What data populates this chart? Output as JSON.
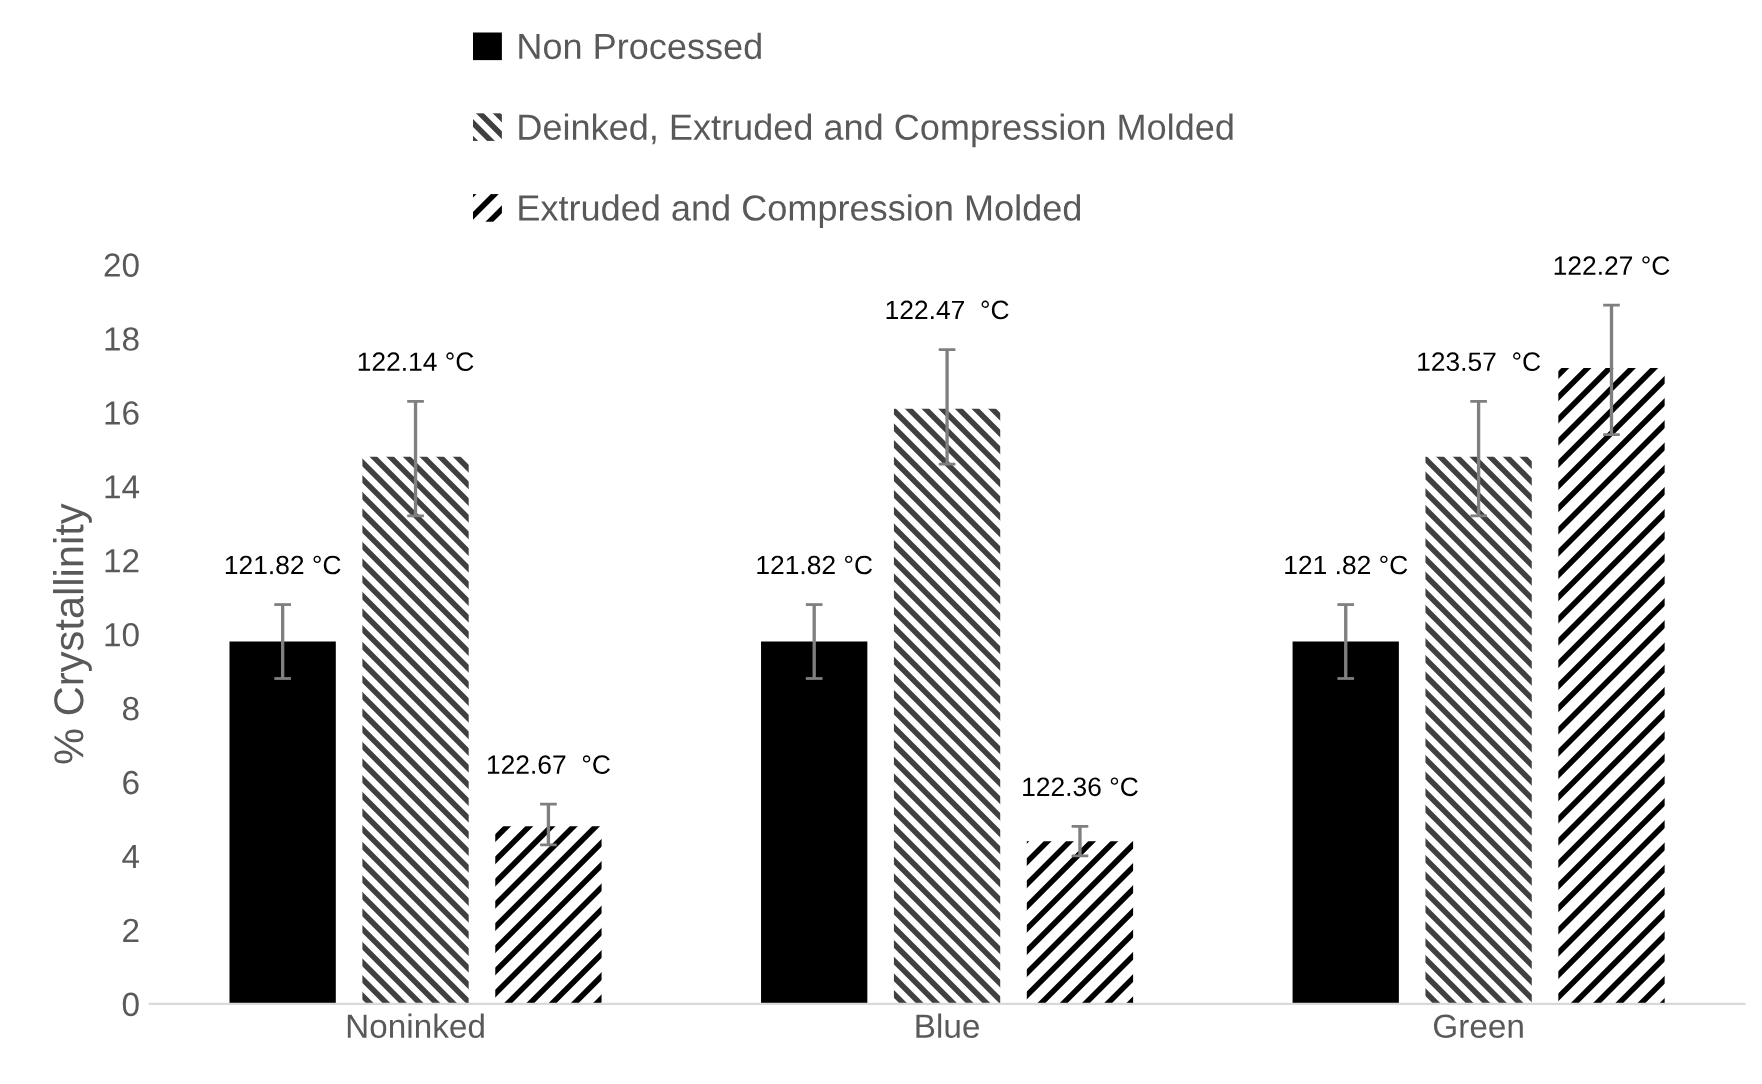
{
  "chart_data": {
    "type": "bar",
    "ylabel": "% Crystallinity",
    "categories": [
      "Noninked",
      "Blue",
      "Green"
    ],
    "series": [
      {
        "name": "Non Processed",
        "color": "#000000",
        "values": [
          9.8,
          9.8,
          9.8
        ],
        "errors": [
          [
            8.8,
            10.8
          ],
          [
            8.8,
            10.8
          ],
          [
            8.8,
            10.8
          ]
        ]
      },
      {
        "name": "Deinked, Extruded and Compression Molded",
        "color": "#404040",
        "values": [
          14.8,
          16.1,
          14.8
        ],
        "errors": [
          [
            13.2,
            16.3
          ],
          [
            14.6,
            17.7
          ],
          [
            13.2,
            16.3
          ]
        ]
      },
      {
        "name": "Extruded and Compression Molded",
        "color": "#000000",
        "values": [
          4.8,
          4.4,
          17.2
        ],
        "errors": [
          [
            4.3,
            5.4
          ],
          [
            4.0,
            4.8
          ],
          [
            15.4,
            18.9
          ]
        ]
      }
    ],
    "annotations": [
      "121.82 °C",
      "121.82 °C",
      "121 .82 °C",
      "122.14 °C",
      "122.47  °C",
      "123.57  °C",
      "122.67  °C",
      "122.36 °C",
      "122.27 °C"
    ],
    "ylim": [
      0,
      20
    ],
    "yticks": [
      0,
      2,
      4,
      6,
      8,
      10,
      12,
      14,
      16,
      18,
      20
    ],
    "grid": false,
    "legend": "top"
  }
}
